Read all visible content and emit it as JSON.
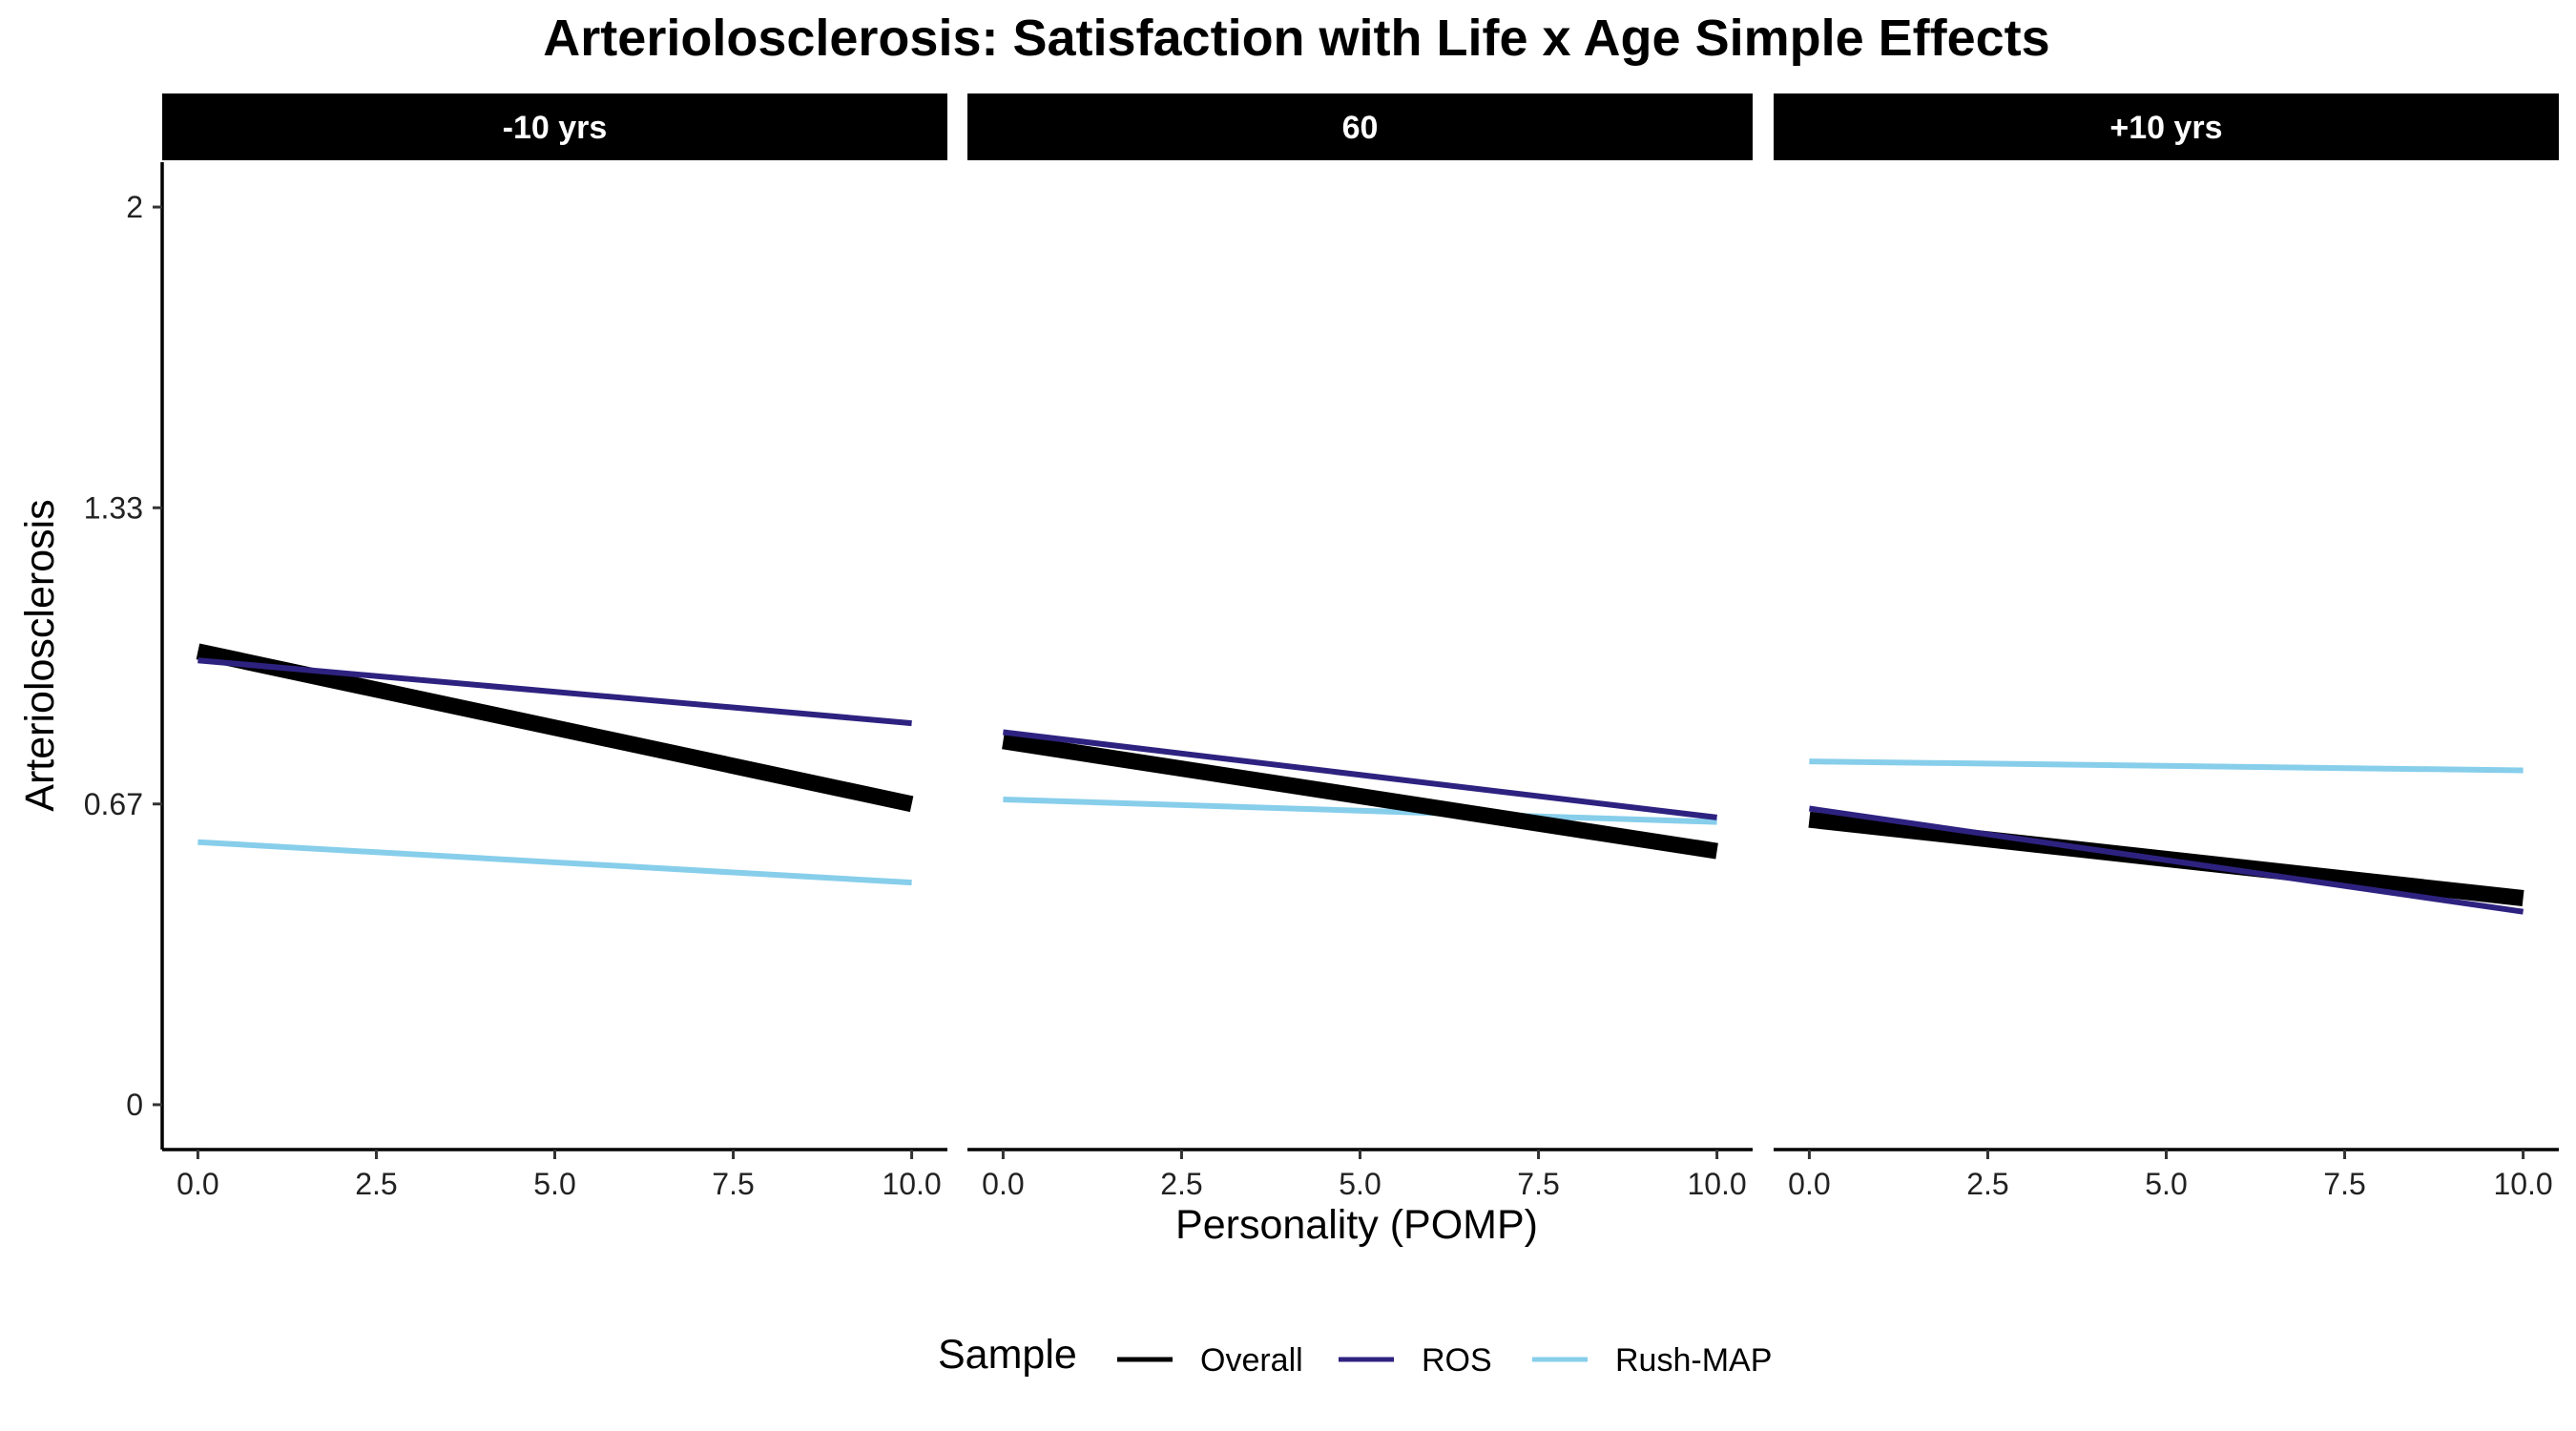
{
  "chart_data": {
    "type": "line",
    "title": "Arteriolosclerosis: Satisfaction with Life x Age Simple Effects",
    "xlabel": "Personality (POMP)",
    "ylabel": "Arteriolosclerosis",
    "xlim": [
      -0.5,
      10.5
    ],
    "ylim": [
      -0.1,
      2.1
    ],
    "xticks": [
      0,
      2.5,
      5,
      7.5,
      10
    ],
    "xtick_labels": [
      "0.0",
      "2.5",
      "5.0",
      "7.5",
      "10.0"
    ],
    "yticks": [
      0,
      0.67,
      1.33,
      2
    ],
    "ytick_labels": [
      "0",
      "0.67",
      "1.33",
      "2"
    ],
    "grid": false,
    "legend": {
      "title": "Sample",
      "position": "bottom",
      "entries": [
        "Overall",
        "ROS",
        "Rush-MAP"
      ]
    },
    "panels": [
      {
        "label": "-10 yrs",
        "series": [
          {
            "name": "Overall",
            "x": [
              0,
              10
            ],
            "y": [
              1.01,
              0.67
            ]
          },
          {
            "name": "ROS",
            "x": [
              0,
              10
            ],
            "y": [
              0.99,
              0.85
            ]
          },
          {
            "name": "Rush-MAP",
            "x": [
              0,
              10
            ],
            "y": [
              0.585,
              0.495
            ]
          }
        ]
      },
      {
        "label": "60",
        "series": [
          {
            "name": "Overall",
            "x": [
              0,
              10
            ],
            "y": [
              0.81,
              0.565
            ]
          },
          {
            "name": "ROS",
            "x": [
              0,
              10
            ],
            "y": [
              0.83,
              0.64
            ]
          },
          {
            "name": "Rush-MAP",
            "x": [
              0,
              10
            ],
            "y": [
              0.68,
              0.63
            ]
          }
        ]
      },
      {
        "label": "+10 yrs",
        "series": [
          {
            "name": "Overall",
            "x": [
              0,
              10
            ],
            "y": [
              0.635,
              0.46
            ]
          },
          {
            "name": "ROS",
            "x": [
              0,
              10
            ],
            "y": [
              0.66,
              0.43
            ]
          },
          {
            "name": "Rush-MAP",
            "x": [
              0,
              10
            ],
            "y": [
              0.765,
              0.745
            ]
          }
        ]
      }
    ],
    "series_styles": [
      {
        "name": "Overall",
        "color": "#000000",
        "weight": "thick"
      },
      {
        "name": "ROS",
        "color": "#2e2280",
        "weight": "thin"
      },
      {
        "name": "Rush-MAP",
        "color": "#87ceeb",
        "weight": "thin"
      }
    ]
  }
}
